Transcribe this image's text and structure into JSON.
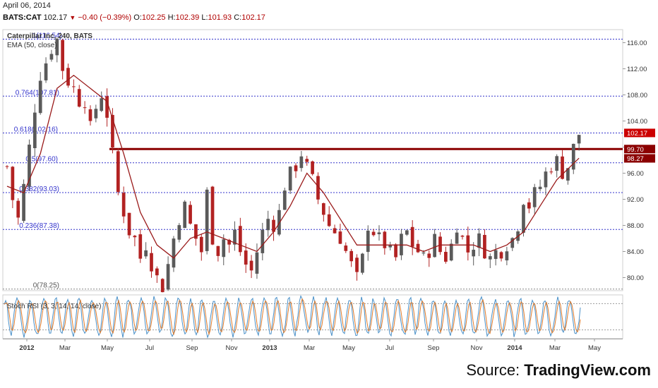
{
  "header": {
    "date": "April 06, 2014",
    "symbol": "BATS:CAT",
    "last": "102.17",
    "change": "−0.40 (−0.39%)",
    "open_label": "O:",
    "open": "102.25",
    "high_label": "H:",
    "high": "102.39",
    "low_label": "L:",
    "low": "101.93",
    "close_label": "C:",
    "close": "102.17"
  },
  "legend": {
    "symbol_title": "Caterpillar Inc, 240, BATS",
    "ema": "EMA (50, close)",
    "stoch": "Stoch RSI (3, 3, 14, 14, close)"
  },
  "source": {
    "prefix": "Source: ",
    "brand": "TradingView.com"
  },
  "colors": {
    "ema": "#9a1a1a",
    "candle_up": "#5a5a5a",
    "candle_down": "#b22222",
    "fib": "#3333cc",
    "support": "#8b0000",
    "stoch_k": "#4a90c8",
    "stoch_d": "#e07b2a",
    "price_badge": "#cc0000"
  },
  "chart_data": {
    "type": "candlestick",
    "ylim": [
      78,
      118
    ],
    "y_ticks": [
      "116.00",
      "112.00",
      "108.00",
      "104.00",
      "100.00",
      "96.00",
      "92.00",
      "88.00",
      "84.00",
      "80.00"
    ],
    "x_ticks": [
      "2012",
      "Mar",
      "May",
      "Jul",
      "Sep",
      "Nov",
      "2013",
      "Mar",
      "May",
      "Jul",
      "Sep",
      "Nov",
      "2014",
      "Mar",
      "May"
    ],
    "fib_levels": [
      {
        "label": "1(116.54)",
        "value": 116.54
      },
      {
        "label": "0.764(107.81)",
        "value": 107.81
      },
      {
        "label": "0.618(102.16)",
        "value": 102.16
      },
      {
        "label": "0.5(97.60)",
        "value": 97.6
      },
      {
        "label": "0.382(93.03)",
        "value": 93.03
      },
      {
        "label": "0.236(87.38)",
        "value": 87.38
      },
      {
        "label": "0(78.25)",
        "value": 78.25
      }
    ],
    "support_line": 99.7,
    "price_labels": [
      {
        "text": "102.17",
        "value": 102.17
      },
      {
        "text": "99.70",
        "value": 99.7
      },
      {
        "text": "98.27",
        "value": 98.27
      }
    ],
    "price_path": [
      [
        0,
        97
      ],
      [
        1,
        92
      ],
      [
        2,
        89
      ],
      [
        3,
        94
      ],
      [
        4,
        100
      ],
      [
        5,
        106
      ],
      [
        6,
        111
      ],
      [
        7,
        113
      ],
      [
        8,
        115
      ],
      [
        9,
        116.5
      ],
      [
        10,
        112
      ],
      [
        11,
        110
      ],
      [
        12,
        109
      ],
      [
        13,
        107
      ],
      [
        14,
        107
      ],
      [
        15,
        103
      ],
      [
        16,
        106
      ],
      [
        17,
        108
      ],
      [
        18,
        105
      ],
      [
        19,
        99
      ],
      [
        20,
        93
      ],
      [
        21,
        90
      ],
      [
        22,
        87
      ],
      [
        23,
        86
      ],
      [
        24,
        83
      ],
      [
        25,
        85
      ],
      [
        26,
        82
      ],
      [
        27,
        80
      ],
      [
        28,
        78.5
      ],
      [
        29,
        82
      ],
      [
        30,
        86
      ],
      [
        31,
        89
      ],
      [
        32,
        91
      ],
      [
        33,
        88
      ],
      [
        34,
        86
      ],
      [
        35,
        84
      ],
      [
        36,
        93
      ],
      [
        37,
        86
      ],
      [
        38,
        84
      ],
      [
        39,
        86
      ],
      [
        40,
        85
      ],
      [
        41,
        87
      ],
      [
        42,
        84
      ],
      [
        43,
        82
      ],
      [
        44,
        81
      ],
      [
        45,
        84
      ],
      [
        46,
        87
      ],
      [
        47,
        89
      ],
      [
        48,
        88
      ],
      [
        49,
        90
      ],
      [
        50,
        94
      ],
      [
        51,
        96
      ],
      [
        52,
        97
      ],
      [
        53,
        99
      ],
      [
        54,
        97
      ],
      [
        55,
        95
      ],
      [
        56,
        92
      ],
      [
        57,
        90
      ],
      [
        58,
        88
      ],
      [
        59,
        87
      ],
      [
        60,
        86
      ],
      [
        61,
        84
      ],
      [
        62,
        82
      ],
      [
        63,
        80
      ],
      [
        64,
        83
      ],
      [
        65,
        88
      ],
      [
        66,
        87
      ],
      [
        67,
        86
      ],
      [
        68,
        85
      ],
      [
        69,
        84
      ],
      [
        70,
        83
      ],
      [
        71,
        86
      ],
      [
        72,
        87
      ],
      [
        73,
        85
      ],
      [
        74,
        84
      ],
      [
        75,
        83
      ],
      [
        76,
        84
      ],
      [
        77,
        86
      ],
      [
        78,
        84
      ],
      [
        79,
        83
      ],
      [
        80,
        85
      ],
      [
        81,
        88
      ],
      [
        82,
        86
      ],
      [
        83,
        84
      ],
      [
        84,
        85
      ],
      [
        85,
        86
      ],
      [
        86,
        84
      ],
      [
        87,
        83
      ],
      [
        88,
        84
      ],
      [
        89,
        84
      ],
      [
        90,
        85
      ],
      [
        91,
        86
      ],
      [
        92,
        88
      ],
      [
        93,
        92
      ],
      [
        94,
        91
      ],
      [
        95,
        93
      ],
      [
        96,
        94
      ],
      [
        97,
        96
      ],
      [
        98,
        97
      ],
      [
        99,
        98
      ],
      [
        100,
        96
      ],
      [
        101,
        97
      ],
      [
        102,
        100
      ],
      [
        103,
        102
      ]
    ],
    "ema_path": [
      [
        0,
        94
      ],
      [
        3,
        93
      ],
      [
        6,
        99
      ],
      [
        9,
        109
      ],
      [
        12,
        111
      ],
      [
        15,
        109
      ],
      [
        18,
        107
      ],
      [
        21,
        99
      ],
      [
        24,
        90
      ],
      [
        27,
        85
      ],
      [
        30,
        83
      ],
      [
        33,
        86
      ],
      [
        36,
        87
      ],
      [
        39,
        86
      ],
      [
        42,
        85
      ],
      [
        45,
        84
      ],
      [
        48,
        87
      ],
      [
        51,
        91
      ],
      [
        54,
        96
      ],
      [
        57,
        93
      ],
      [
        60,
        89
      ],
      [
        63,
        85
      ],
      [
        66,
        85
      ],
      [
        69,
        85
      ],
      [
        72,
        85
      ],
      [
        75,
        84
      ],
      [
        78,
        85
      ],
      [
        81,
        85
      ],
      [
        84,
        85
      ],
      [
        87,
        84
      ],
      [
        90,
        85
      ],
      [
        93,
        87
      ],
      [
        96,
        91
      ],
      [
        99,
        95
      ],
      [
        103,
        98.3
      ]
    ]
  }
}
